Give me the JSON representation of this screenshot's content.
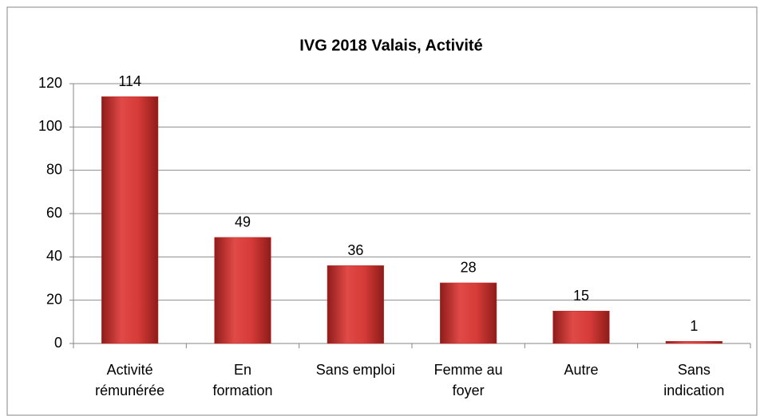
{
  "chart_data": {
    "type": "bar",
    "title": "IVG 2018 Valais, Activité",
    "categories": [
      "Activité\nrémunérée",
      "En\nformation",
      "Sans emploi",
      "Femme au\nfoyer",
      "Autre",
      "Sans\nindication"
    ],
    "values": [
      114,
      49,
      36,
      28,
      15,
      1
    ],
    "color": "#c0302e",
    "ylim": [
      0,
      120
    ],
    "yticks": [
      0,
      20,
      40,
      60,
      80,
      100,
      120
    ],
    "grid": true
  }
}
